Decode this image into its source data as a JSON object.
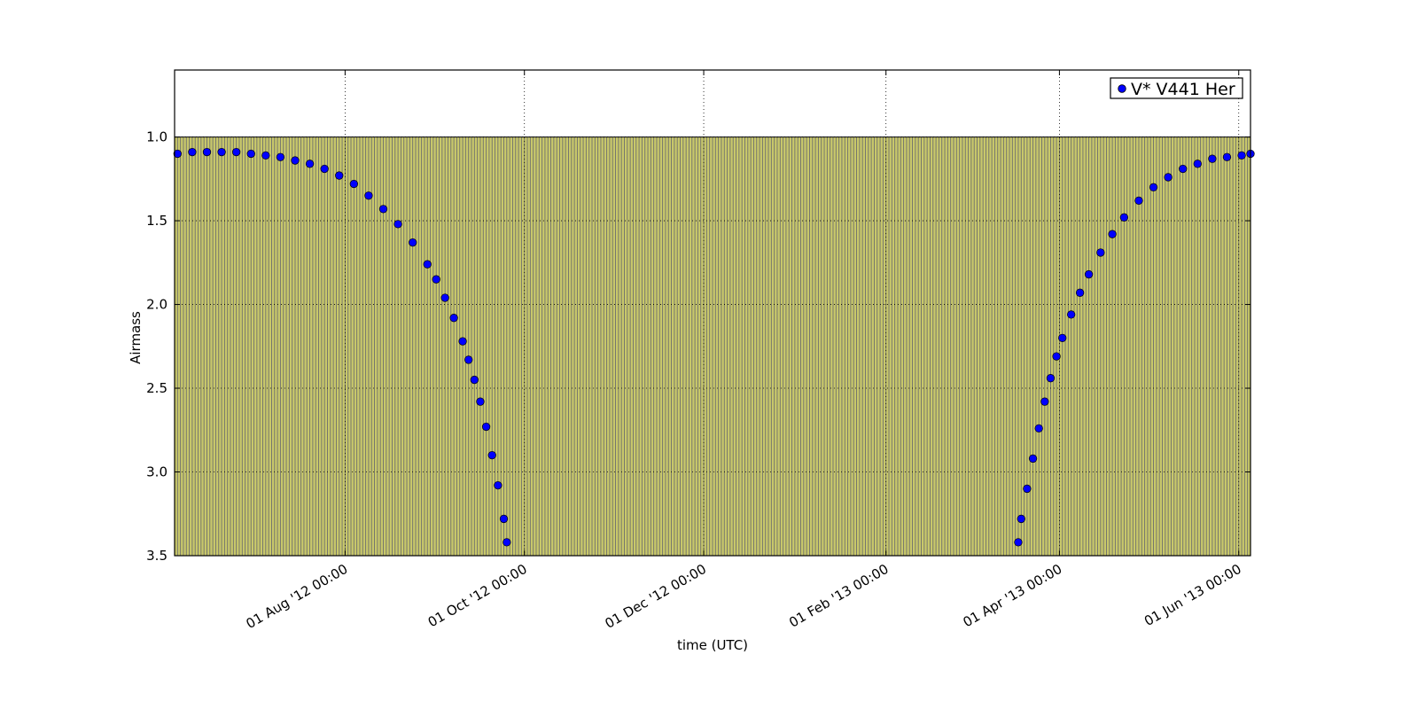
{
  "chart_data": {
    "type": "scatter",
    "title": "",
    "xlabel": "time (UTC)",
    "ylabel": "Airmass",
    "xlim": [
      "2012-06-04",
      "2013-06-05"
    ],
    "ylim": [
      3.5,
      0.6
    ],
    "y_inverted": true,
    "grid": true,
    "legend_position": "top-right",
    "x_ticks": [
      {
        "date": "2012-08-01",
        "label": "01 Aug '12 00:00"
      },
      {
        "date": "2012-10-01",
        "label": "01 Oct '12 00:00"
      },
      {
        "date": "2012-12-01",
        "label": "01 Dec '12 00:00"
      },
      {
        "date": "2013-02-01",
        "label": "01 Feb '13 00:00"
      },
      {
        "date": "2013-04-01",
        "label": "01 Apr '13 00:00"
      },
      {
        "date": "2013-06-01",
        "label": "01 Jun '13 00:00"
      }
    ],
    "y_ticks": [
      {
        "value": 1.0,
        "label": "1.0"
      },
      {
        "value": 1.5,
        "label": "1.5"
      },
      {
        "value": 2.0,
        "label": "2.0"
      },
      {
        "value": 2.5,
        "label": "2.5"
      },
      {
        "value": 3.0,
        "label": "3.0"
      },
      {
        "value": 3.5,
        "label": "3.5"
      }
    ],
    "background_band": {
      "y_from": 1.0,
      "y_to": 3.5,
      "color": "#c8c86a",
      "stripe_color": "#6e6e6e"
    },
    "series": [
      {
        "name": "V* V441 Her",
        "color": "#0000ff",
        "points": [
          {
            "x": "2012-06-05",
            "y": 1.1
          },
          {
            "x": "2012-06-10",
            "y": 1.09
          },
          {
            "x": "2012-06-15",
            "y": 1.09
          },
          {
            "x": "2012-06-20",
            "y": 1.09
          },
          {
            "x": "2012-06-25",
            "y": 1.09
          },
          {
            "x": "2012-06-30",
            "y": 1.1
          },
          {
            "x": "2012-07-05",
            "y": 1.11
          },
          {
            "x": "2012-07-10",
            "y": 1.12
          },
          {
            "x": "2012-07-15",
            "y": 1.14
          },
          {
            "x": "2012-07-20",
            "y": 1.16
          },
          {
            "x": "2012-07-25",
            "y": 1.19
          },
          {
            "x": "2012-07-30",
            "y": 1.23
          },
          {
            "x": "2012-08-04",
            "y": 1.28
          },
          {
            "x": "2012-08-09",
            "y": 1.35
          },
          {
            "x": "2012-08-14",
            "y": 1.43
          },
          {
            "x": "2012-08-19",
            "y": 1.52
          },
          {
            "x": "2012-08-24",
            "y": 1.63
          },
          {
            "x": "2012-08-29",
            "y": 1.76
          },
          {
            "x": "2012-09-01",
            "y": 1.85
          },
          {
            "x": "2012-09-04",
            "y": 1.96
          },
          {
            "x": "2012-09-07",
            "y": 2.08
          },
          {
            "x": "2012-09-10",
            "y": 2.22
          },
          {
            "x": "2012-09-12",
            "y": 2.33
          },
          {
            "x": "2012-09-14",
            "y": 2.45
          },
          {
            "x": "2012-09-16",
            "y": 2.58
          },
          {
            "x": "2012-09-18",
            "y": 2.73
          },
          {
            "x": "2012-09-20",
            "y": 2.9
          },
          {
            "x": "2012-09-22",
            "y": 3.08
          },
          {
            "x": "2012-09-24",
            "y": 3.28
          },
          {
            "x": "2012-09-25",
            "y": 3.42
          },
          {
            "x": "2013-03-18",
            "y": 3.42
          },
          {
            "x": "2013-03-19",
            "y": 3.28
          },
          {
            "x": "2013-03-21",
            "y": 3.1
          },
          {
            "x": "2013-03-23",
            "y": 2.92
          },
          {
            "x": "2013-03-25",
            "y": 2.74
          },
          {
            "x": "2013-03-27",
            "y": 2.58
          },
          {
            "x": "2013-03-29",
            "y": 2.44
          },
          {
            "x": "2013-03-31",
            "y": 2.31
          },
          {
            "x": "2013-04-02",
            "y": 2.2
          },
          {
            "x": "2013-04-05",
            "y": 2.06
          },
          {
            "x": "2013-04-08",
            "y": 1.93
          },
          {
            "x": "2013-04-11",
            "y": 1.82
          },
          {
            "x": "2013-04-15",
            "y": 1.69
          },
          {
            "x": "2013-04-19",
            "y": 1.58
          },
          {
            "x": "2013-04-23",
            "y": 1.48
          },
          {
            "x": "2013-04-28",
            "y": 1.38
          },
          {
            "x": "2013-05-03",
            "y": 1.3
          },
          {
            "x": "2013-05-08",
            "y": 1.24
          },
          {
            "x": "2013-05-13",
            "y": 1.19
          },
          {
            "x": "2013-05-18",
            "y": 1.16
          },
          {
            "x": "2013-05-23",
            "y": 1.13
          },
          {
            "x": "2013-05-28",
            "y": 1.12
          },
          {
            "x": "2013-06-02",
            "y": 1.11
          },
          {
            "x": "2013-06-05",
            "y": 1.1
          }
        ]
      }
    ]
  }
}
